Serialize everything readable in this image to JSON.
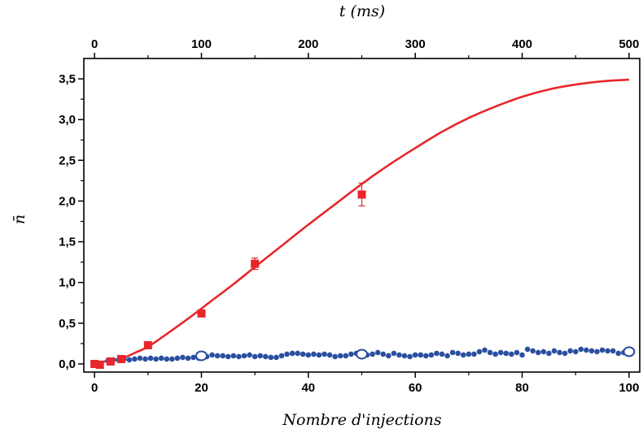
{
  "chart_data": {
    "type": "scatter",
    "title": "",
    "xlabel": "Nombre d'injections",
    "ylabel": "n̄",
    "x2label": "t (ms)",
    "xlim": [
      -2,
      102
    ],
    "ylim": [
      -0.1,
      3.75
    ],
    "x2lim": [
      -10,
      510
    ],
    "xticks": [
      0,
      20,
      40,
      60,
      80,
      100
    ],
    "xtick_labels": [
      "0",
      "20",
      "40",
      "60",
      "80",
      "100"
    ],
    "x2ticks": [
      0,
      100,
      200,
      300,
      400,
      500
    ],
    "x2tick_labels": [
      "0",
      "100",
      "200",
      "300",
      "400",
      "500"
    ],
    "yticks": [
      0,
      0.5,
      1.0,
      1.5,
      2.0,
      2.5,
      3.0,
      3.5
    ],
    "ytick_labels": [
      "0,0",
      "0,5",
      "1,0",
      "1,5",
      "2,0",
      "2,5",
      "3,0",
      "3,5"
    ],
    "grid": false,
    "legend": "none",
    "colors": {
      "red": "#e8262b",
      "blue": "#2a4fa0",
      "axis": "#000000"
    },
    "series": [
      {
        "kind": "red-squares",
        "x": [
          0,
          1,
          3,
          5,
          10,
          20,
          30,
          50
        ],
        "y": [
          0.0,
          -0.01,
          0.03,
          0.06,
          0.23,
          0.62,
          1.23,
          2.08
        ],
        "err": [
          0,
          0,
          0,
          0,
          0.02,
          0.03,
          0.07,
          0.14
        ]
      },
      {
        "kind": "red-fit-curve",
        "x": [
          0,
          2,
          4,
          6,
          8,
          10,
          14,
          18,
          22,
          26,
          30,
          35,
          40,
          45,
          50,
          55,
          60,
          65,
          70,
          75,
          80,
          85,
          90,
          95,
          100
        ],
        "y": [
          0.02,
          0.03,
          0.05,
          0.09,
          0.15,
          0.21,
          0.39,
          0.58,
          0.78,
          0.98,
          1.19,
          1.45,
          1.71,
          1.96,
          2.21,
          2.44,
          2.65,
          2.85,
          3.02,
          3.16,
          3.28,
          3.37,
          3.43,
          3.47,
          3.49
        ]
      },
      {
        "kind": "blue-dots",
        "x": [
          2.5,
          3.5,
          4.5,
          5.5,
          6.5,
          7.5,
          8.5,
          9.5,
          10.5,
          11.5,
          12.5,
          13.5,
          14.5,
          15.5,
          16.5,
          17.5,
          18.5,
          19.5,
          21,
          22,
          23,
          24,
          25,
          26,
          27,
          28,
          29,
          30,
          31,
          32,
          33,
          34,
          35,
          36,
          37,
          38,
          39,
          40,
          41,
          42,
          43,
          44,
          45,
          46,
          47,
          48,
          49,
          51,
          52,
          53,
          54,
          55,
          56,
          57,
          58,
          59,
          60,
          61,
          62,
          63,
          64,
          65,
          66,
          67,
          68,
          69,
          70,
          71,
          72,
          73,
          74,
          75,
          76,
          77,
          78,
          79,
          80,
          81,
          82,
          83,
          84,
          85,
          86,
          87,
          88,
          89,
          90,
          91,
          92,
          93,
          94,
          95,
          96,
          97,
          98,
          99
        ],
        "y": [
          0.04,
          0.05,
          0.05,
          0.06,
          0.05,
          0.06,
          0.07,
          0.06,
          0.07,
          0.06,
          0.07,
          0.06,
          0.06,
          0.07,
          0.08,
          0.07,
          0.08,
          0.07,
          0.09,
          0.11,
          0.1,
          0.1,
          0.09,
          0.1,
          0.09,
          0.1,
          0.11,
          0.09,
          0.1,
          0.09,
          0.08,
          0.08,
          0.1,
          0.12,
          0.13,
          0.13,
          0.12,
          0.11,
          0.12,
          0.11,
          0.12,
          0.11,
          0.09,
          0.1,
          0.1,
          0.12,
          0.13,
          0.11,
          0.12,
          0.14,
          0.12,
          0.1,
          0.13,
          0.11,
          0.1,
          0.09,
          0.11,
          0.11,
          0.1,
          0.11,
          0.13,
          0.12,
          0.1,
          0.14,
          0.13,
          0.11,
          0.12,
          0.12,
          0.15,
          0.17,
          0.14,
          0.12,
          0.14,
          0.13,
          0.12,
          0.14,
          0.11,
          0.18,
          0.16,
          0.14,
          0.15,
          0.13,
          0.16,
          0.14,
          0.13,
          0.16,
          0.15,
          0.18,
          0.17,
          0.16,
          0.15,
          0.17,
          0.16,
          0.16,
          0.13,
          0.14
        ]
      },
      {
        "kind": "blue-open-circles",
        "x": [
          20,
          50,
          100
        ],
        "y": [
          0.1,
          0.12,
          0.15
        ]
      }
    ]
  }
}
